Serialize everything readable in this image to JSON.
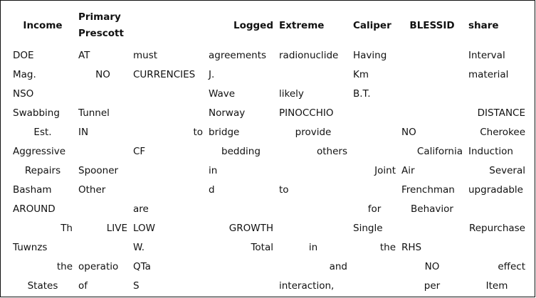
{
  "table": {
    "headers": [
      [
        "Income"
      ],
      [
        "Primary",
        "Prescott"
      ],
      [
        ""
      ],
      [
        "Logged"
      ],
      [
        "Extreme"
      ],
      [
        "Caliper"
      ],
      [
        "BLESSID"
      ],
      [
        "share"
      ]
    ],
    "rows": [
      [
        "DOE",
        "AT",
        "must",
        "agreements",
        "radionuclide",
        "Having",
        "",
        "Interval"
      ],
      [
        "Mag.",
        "NO",
        "CURRENCIES",
        "J.",
        "",
        "Km",
        "",
        "material"
      ],
      [
        "NSO",
        "",
        "",
        "Wave",
        "likely",
        "B.T.",
        "",
        ""
      ],
      [
        "Swabbing",
        "Tunnel",
        "",
        "Norway",
        "PINOCCHIO",
        "",
        "",
        "DISTANCE"
      ],
      [
        "Est.",
        "IN",
        "to",
        "bridge",
        "provide",
        "",
        "NO",
        "Cherokee"
      ],
      [
        "Aggressive",
        "",
        "CF",
        "bedding",
        "others",
        "",
        "California",
        "Induction"
      ],
      [
        "Repairs",
        "Spooner",
        "",
        "in",
        "",
        "Joint",
        "Air",
        "Several"
      ],
      [
        "Basham",
        "Other",
        "",
        "d",
        "to",
        "",
        "Frenchman",
        "upgradable"
      ],
      [
        "AROUND",
        "",
        "are",
        "",
        "",
        "for",
        "Behavior",
        ""
      ],
      [
        "Th",
        "LIVE",
        "LOW",
        "GROWTH",
        "",
        "Single",
        "",
        "Repurchase"
      ],
      [
        "Tuwnzs",
        "",
        "W.",
        "Total",
        "in",
        "the",
        "RHS",
        ""
      ],
      [
        "the",
        "operatio",
        "QTa",
        "",
        "and",
        "",
        "NO",
        "effect"
      ],
      [
        "States",
        "of",
        "S",
        "",
        "interaction,",
        "",
        "per",
        "Item"
      ]
    ]
  }
}
